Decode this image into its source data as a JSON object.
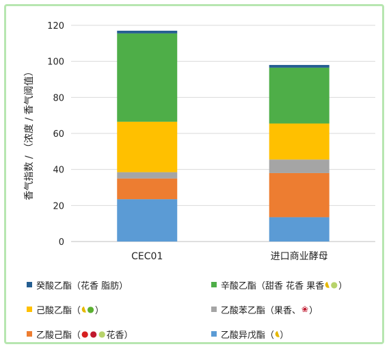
{
  "chart_data": {
    "type": "bar",
    "stacked": true,
    "categories": [
      "CEC01",
      "进口商业酵母"
    ],
    "ylabel": "香气指数 / （浓度 / 香气阈值）",
    "ylim": [
      0,
      120
    ],
    "yticks": [
      0,
      20,
      40,
      60,
      80,
      100,
      120
    ],
    "grid": true,
    "legend_position": "bottom",
    "series": [
      {
        "name": "乙酸异戊酯",
        "color": "#5b9bd5",
        "values": [
          23.5,
          13.5
        ]
      },
      {
        "name": "乙酸己酯",
        "color": "#ed7d31",
        "values": [
          11.5,
          24.5
        ]
      },
      {
        "name": "乙酸苯乙酯",
        "color": "#a5a5a5",
        "values": [
          3.5,
          7.5
        ]
      },
      {
        "name": "己酸乙酯",
        "color": "#ffc000",
        "values": [
          28,
          20
        ]
      },
      {
        "name": "辛酸乙酯",
        "color": "#4eae48",
        "values": [
          49,
          31
        ]
      },
      {
        "name": "癸酸乙酯",
        "color": "#255e91",
        "values": [
          1.5,
          1.5
        ]
      }
    ]
  },
  "legend": [
    {
      "name": "癸酸乙酯",
      "color": "#255e91",
      "note": "（花香 脂肪）",
      "icons": []
    },
    {
      "name": "辛酸乙酯",
      "color": "#4eae48",
      "note": "（甜香 花香 果香",
      "icons": [
        "banana",
        "pear"
      ],
      "close": "）"
    },
    {
      "name": "己酸乙酯",
      "color": "#ffc000",
      "note": "（",
      "icons": [
        "banana",
        "apple-g"
      ],
      "close": "）"
    },
    {
      "name": "乙酸苯乙酯",
      "color": "#a5a5a5",
      "note": "（果香、",
      "icons": [
        "rose"
      ],
      "close": "）"
    },
    {
      "name": "乙酸己酯",
      "color": "#ed7d31",
      "note": "（",
      "icons": [
        "apple-r",
        "cherry",
        "pear"
      ],
      "close": "花香）"
    },
    {
      "name": "乙酸异戊酯",
      "color": "#5b9bd5",
      "note": "（",
      "icons": [
        "banana"
      ],
      "close": "）"
    }
  ]
}
